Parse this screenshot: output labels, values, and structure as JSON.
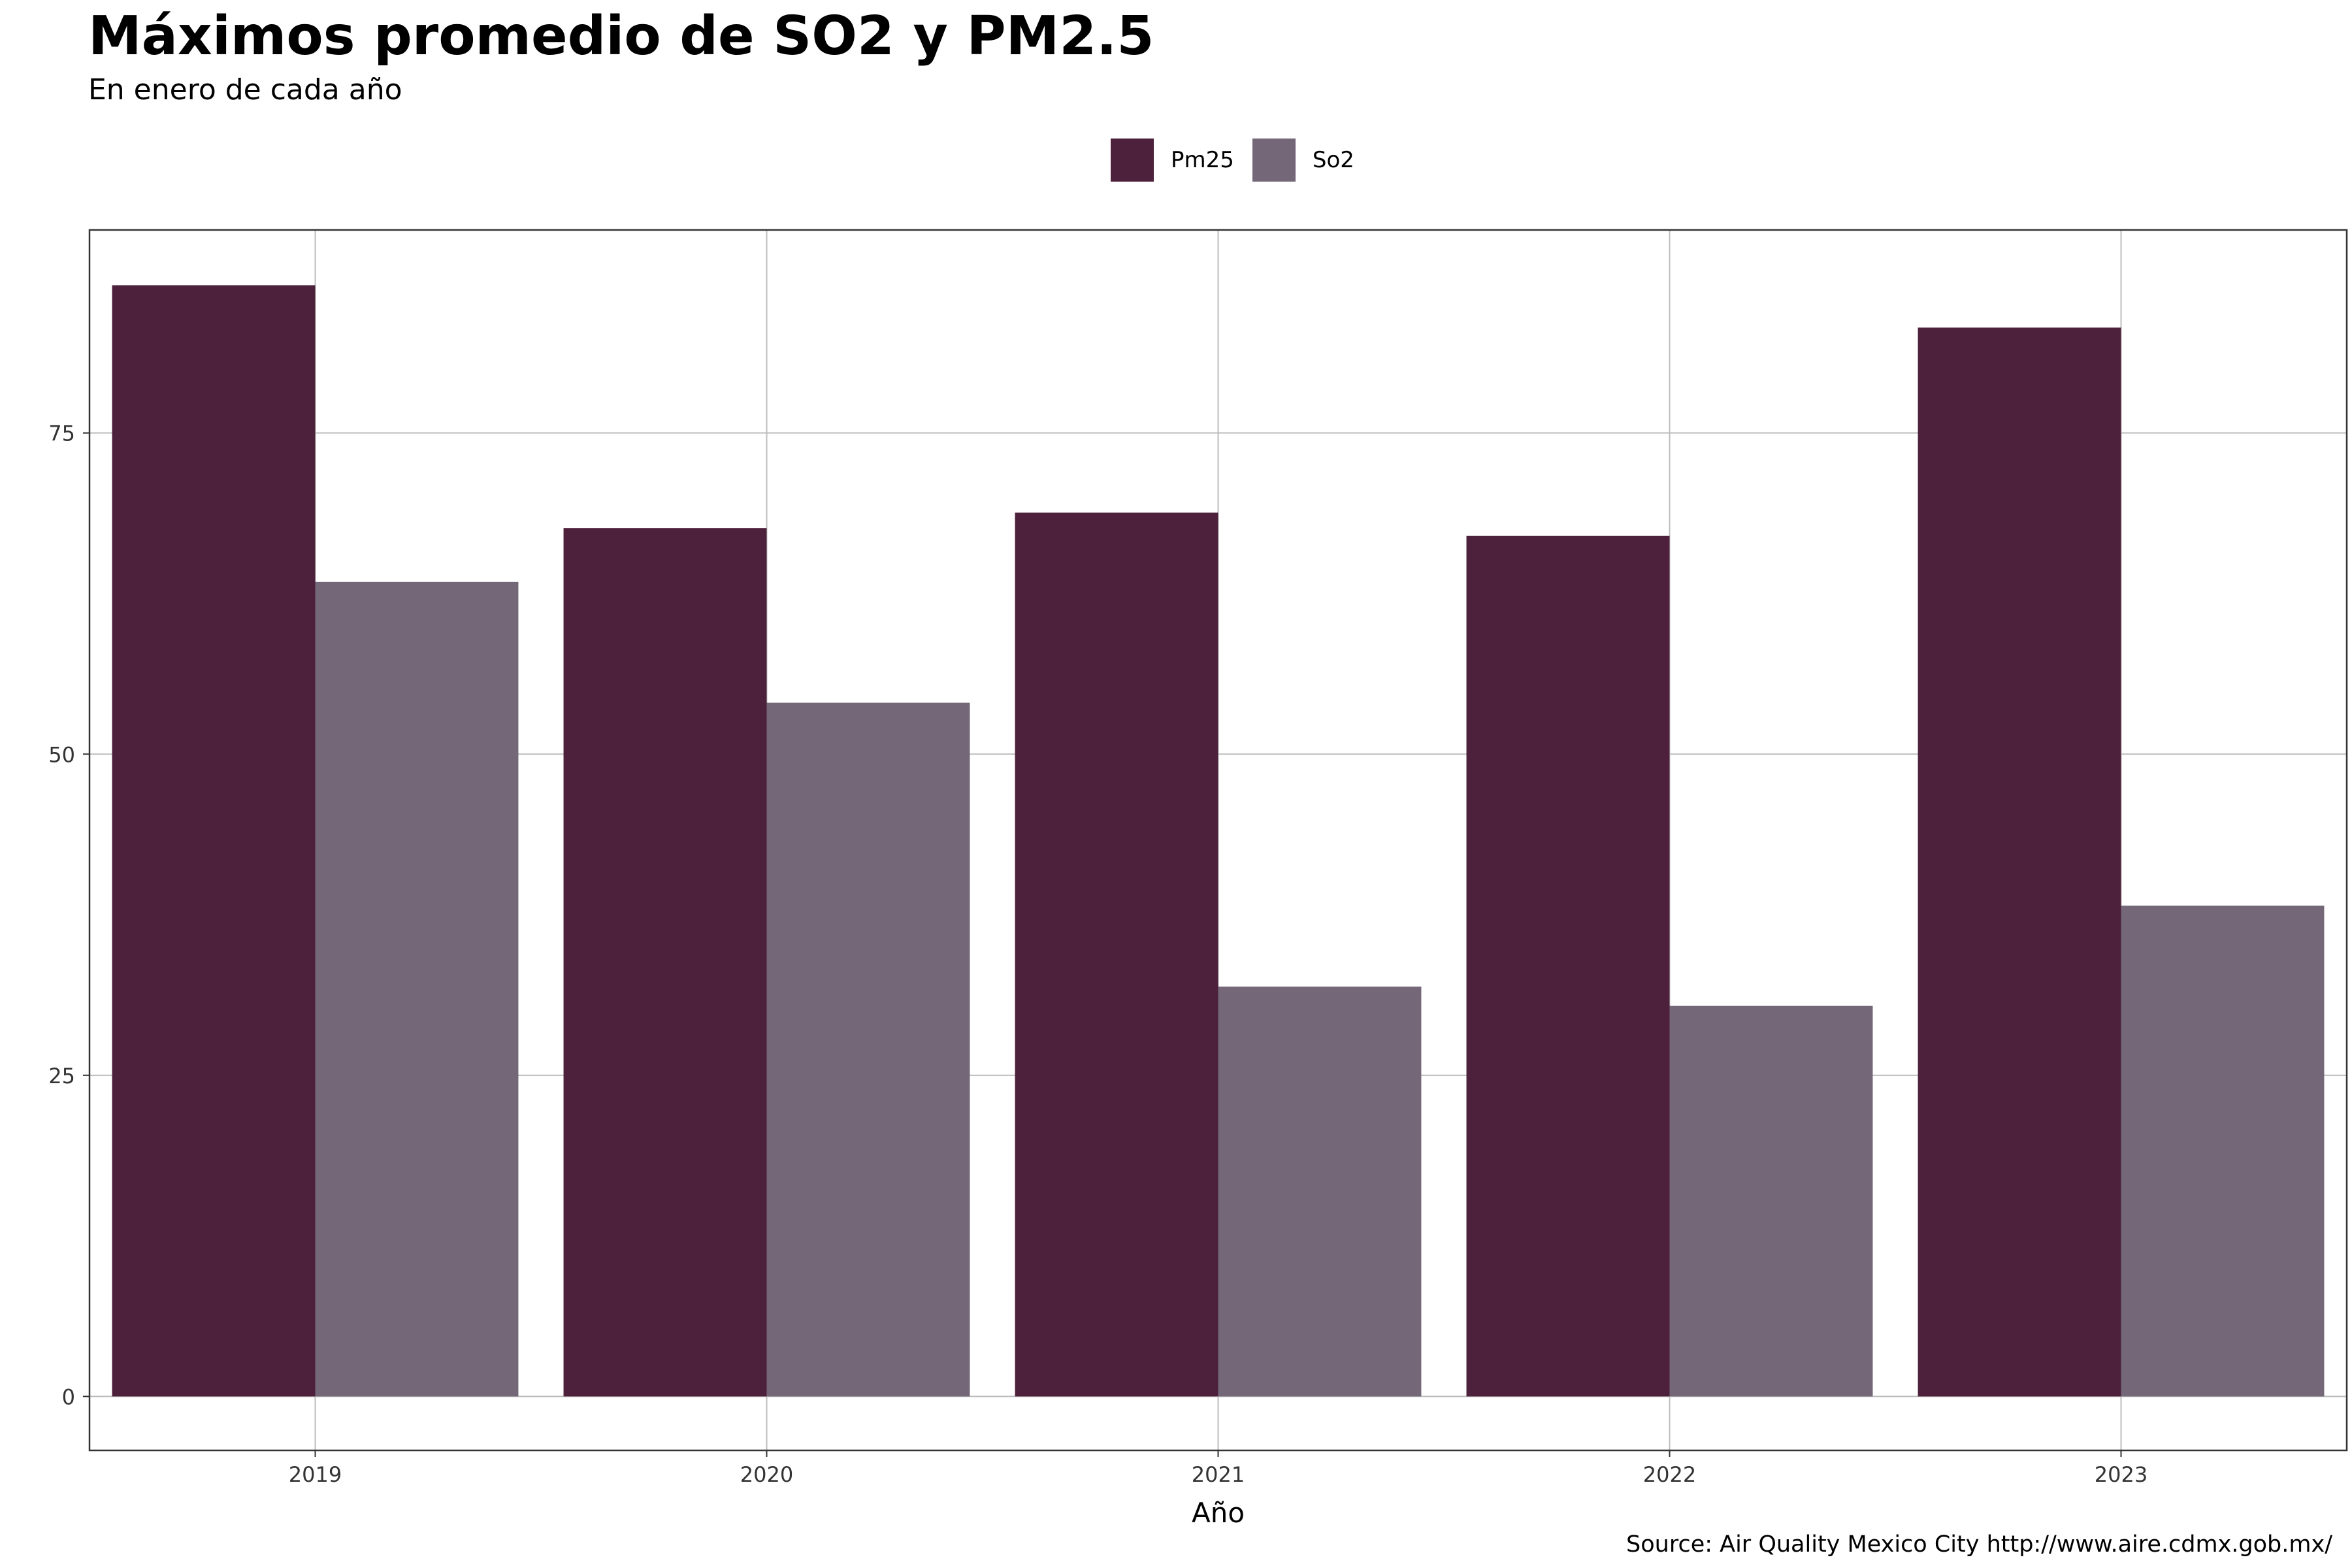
{
  "title": "Máximos promedio de SO2 y PM2.5",
  "subtitle": "En enero de cada año",
  "caption": "Source: Air Quality Mexico City http://www.aire.cdmx.gob.mx/",
  "legend": {
    "items": [
      {
        "label": "Pm25",
        "color": "#4d213b"
      },
      {
        "label": "So2",
        "color": "#736778"
      }
    ]
  },
  "chart_data": {
    "type": "bar",
    "title": "Máximos promedio de SO2 y PM2.5",
    "subtitle": "En enero de cada año",
    "xlabel": "Año",
    "ylabel": "",
    "categories": [
      "2019",
      "2020",
      "2021",
      "2022",
      "2023"
    ],
    "series": [
      {
        "name": "Pm25",
        "color": "#4d213b",
        "values": [
          86.5,
          67.6,
          68.8,
          67.0,
          83.2
        ]
      },
      {
        "name": "So2",
        "color": "#736778",
        "values": [
          63.4,
          54.0,
          31.9,
          30.4,
          38.2
        ]
      }
    ],
    "yticks": [
      0,
      25,
      50,
      75
    ],
    "ylim": [
      -4.2,
      90.8
    ],
    "grid": true,
    "legend_position": "top"
  }
}
